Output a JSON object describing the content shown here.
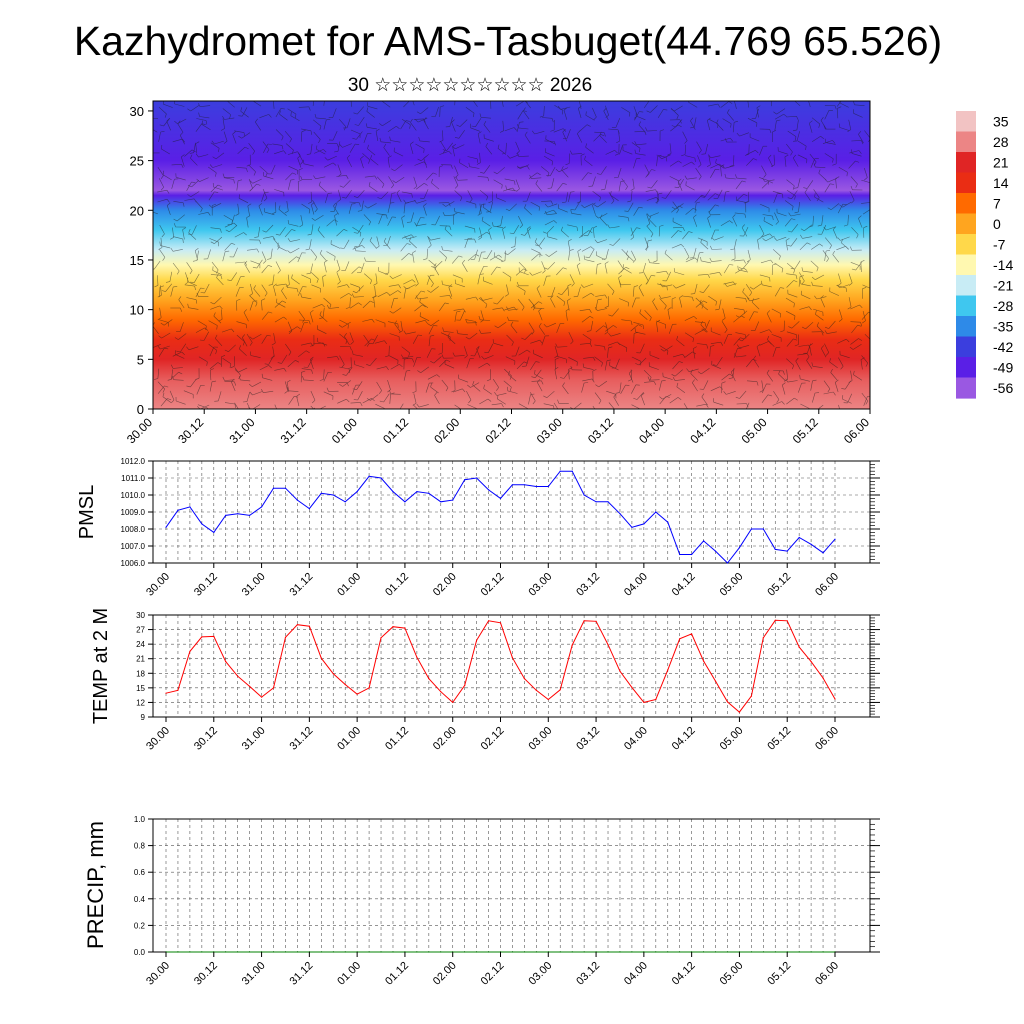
{
  "title": "Kazhydromet for AMS-Tasbuget(44.769 65.526)",
  "subtitle": "30 ☆☆☆☆☆☆☆☆☆☆ 2026",
  "time_labels": [
    "30.00",
    "30.12",
    "31.00",
    "31.12",
    "01.00",
    "01.12",
    "02.00",
    "02.12",
    "03.00",
    "03.12",
    "04.00",
    "04.12",
    "05.00",
    "05.12",
    "06.00"
  ],
  "chart_data": [
    {
      "type": "heatmap",
      "title": "",
      "xlabel": "",
      "ylabel": "",
      "x_ticks": [
        "30.00",
        "30.12",
        "31.00",
        "31.12",
        "01.00",
        "01.12",
        "02.00",
        "02.12",
        "03.00",
        "03.12",
        "04.00",
        "04.12",
        "05.00",
        "05.12",
        "06.00"
      ],
      "y_ticks": [
        0,
        5,
        10,
        15,
        20,
        25,
        30
      ],
      "ylim": [
        0,
        31
      ],
      "colorbar_labels": [
        "35",
        "28",
        "21",
        "14",
        "7",
        "0",
        "-7",
        "-14",
        "-21",
        "-28",
        "-35",
        "-42",
        "-49",
        "-56"
      ],
      "colorbar_colors": [
        "#f2c3c3",
        "#ec8585",
        "#e02525",
        "#ea2d14",
        "#ff6a00",
        "#ffa51f",
        "#ffd84a",
        "#fff8b0",
        "#c8ecf5",
        "#3fc7ef",
        "#2e8ae8",
        "#3b3ede",
        "#5a1fe6",
        "#9a58e2"
      ],
      "profile": [
        {
          "h": 0,
          "value": 28
        },
        {
          "h": 3,
          "value": 25
        },
        {
          "h": 5,
          "value": 21
        },
        {
          "h": 7,
          "value": 14
        },
        {
          "h": 9,
          "value": 7
        },
        {
          "h": 11,
          "value": 0
        },
        {
          "h": 13,
          "value": -7
        },
        {
          "h": 14.5,
          "value": -14
        },
        {
          "h": 16,
          "value": -21
        },
        {
          "h": 18,
          "value": -28
        },
        {
          "h": 20,
          "value": -35
        },
        {
          "h": 21.5,
          "value": -49
        },
        {
          "h": 22,
          "value": -56
        },
        {
          "h": 25,
          "value": -49
        },
        {
          "h": 31,
          "value": -42
        }
      ]
    },
    {
      "type": "line",
      "ylabel": "PMSL",
      "ylim": [
        1006.0,
        1012.0
      ],
      "y_ticks": [
        "1006.0",
        "1007.0",
        "1008.0",
        "1009.0",
        "1010.0",
        "1011.0",
        "1012.0"
      ],
      "x_ticks": [
        "30.00",
        "30.12",
        "31.00",
        "31.12",
        "01.00",
        "01.12",
        "02.00",
        "02.12",
        "03.00",
        "03.12",
        "04.00",
        "04.12",
        "05.00",
        "05.12",
        "06.00"
      ],
      "series": [
        {
          "color": "#0000ff",
          "values": [
            1008.1,
            1009.1,
            1009.3,
            1008.3,
            1007.8,
            1008.8,
            1008.9,
            1008.8,
            1009.3,
            1010.4,
            1010.4,
            1009.7,
            1009.2,
            1010.1,
            1010.0,
            1009.6,
            1010.2,
            1011.1,
            1011.0,
            1010.2,
            1009.6,
            1010.2,
            1010.1,
            1009.6,
            1009.7,
            1010.9,
            1011.0,
            1010.3,
            1009.8,
            1010.6,
            1010.6,
            1010.5,
            1010.5,
            1011.4,
            1011.4,
            1010.0,
            1009.6,
            1009.6,
            1008.9,
            1008.1,
            1008.3,
            1009.0,
            1008.4,
            1006.5,
            1006.5,
            1007.3,
            1006.7,
            1006.0,
            1006.9,
            1008.0,
            1008.0,
            1006.8,
            1006.7,
            1007.5,
            1007.1,
            1006.6,
            1007.4
          ]
        }
      ]
    },
    {
      "type": "line",
      "ylabel": "TEMP at 2 M",
      "ylim": [
        9,
        30
      ],
      "y_ticks": [
        "9",
        "12",
        "15",
        "18",
        "21",
        "24",
        "27",
        "30"
      ],
      "x_ticks": [
        "30.00",
        "30.12",
        "31.00",
        "31.12",
        "01.00",
        "01.12",
        "02.00",
        "02.12",
        "03.00",
        "03.12",
        "04.00",
        "04.12",
        "05.00",
        "05.12",
        "06.00"
      ],
      "series": [
        {
          "color": "#ff0000",
          "values": [
            13.9,
            14.5,
            22.5,
            25.5,
            25.6,
            20.4,
            17.4,
            15.3,
            13.1,
            15.0,
            25.4,
            28.0,
            27.7,
            21.1,
            17.9,
            15.7,
            13.7,
            15.0,
            25.3,
            27.6,
            27.3,
            21.3,
            16.9,
            14.2,
            12.0,
            15.5,
            24.8,
            28.8,
            28.4,
            21.2,
            16.9,
            14.5,
            12.6,
            14.6,
            23.8,
            28.8,
            28.7,
            23.9,
            18.4,
            15.1,
            12.0,
            12.6,
            18.7,
            25.1,
            26.1,
            20.5,
            16.4,
            12.1,
            10.0,
            13.3,
            25.3,
            28.9,
            28.8,
            23.4,
            20.4,
            17.0,
            12.7
          ]
        }
      ]
    },
    {
      "type": "line",
      "ylabel": "PRECIP, mm",
      "ylim": [
        0.0,
        1.0
      ],
      "y_ticks": [
        "0.0",
        "0.2",
        "0.4",
        "0.6",
        "0.8",
        "1.0"
      ],
      "x_ticks": [
        "30.00",
        "30.12",
        "31.00",
        "31.12",
        "01.00",
        "01.12",
        "02.00",
        "02.12",
        "03.00",
        "03.12",
        "04.00",
        "04.12",
        "05.00",
        "05.12",
        "06.00"
      ],
      "series": [
        {
          "color": "#008000",
          "values": [
            0,
            0,
            0,
            0,
            0,
            0,
            0,
            0,
            0,
            0,
            0,
            0,
            0,
            0,
            0,
            0,
            0,
            0,
            0,
            0,
            0,
            0,
            0,
            0,
            0,
            0,
            0,
            0,
            0,
            0,
            0,
            0,
            0,
            0,
            0,
            0,
            0,
            0,
            0,
            0,
            0,
            0,
            0,
            0,
            0,
            0,
            0,
            0,
            0,
            0,
            0,
            0,
            0,
            0,
            0,
            0,
            0
          ]
        }
      ]
    }
  ]
}
